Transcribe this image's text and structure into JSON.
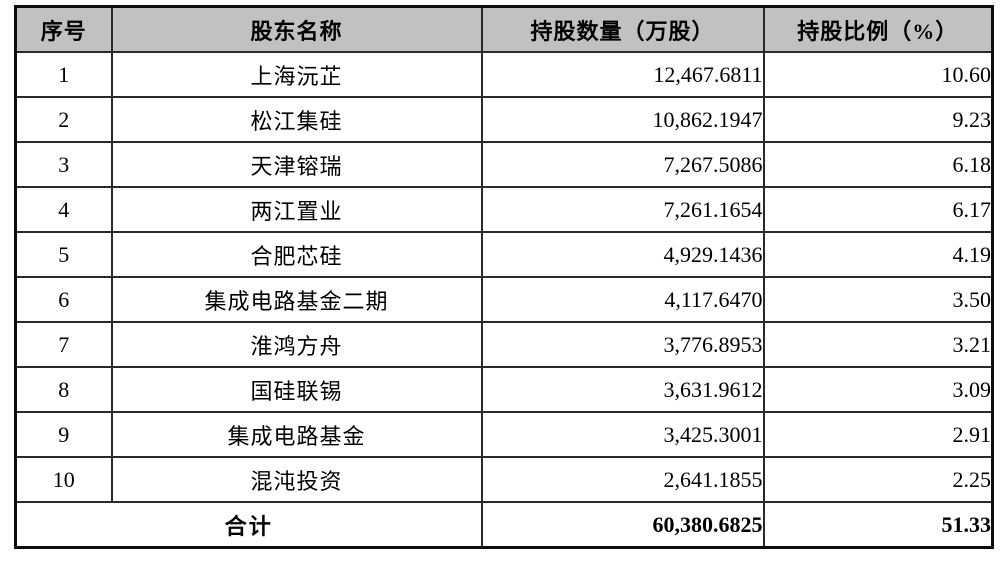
{
  "table": {
    "headers": {
      "no": "序号",
      "name": "股东名称",
      "shares": "持股数量（万股）",
      "pct": "持股比例（%）"
    },
    "rows": [
      {
        "no": "1",
        "name": "上海沅芷",
        "shares": "12,467.6811",
        "pct": "10.60"
      },
      {
        "no": "2",
        "name": "松江集硅",
        "shares": "10,862.1947",
        "pct": "9.23"
      },
      {
        "no": "3",
        "name": "天津镕瑞",
        "shares": "7,267.5086",
        "pct": "6.18"
      },
      {
        "no": "4",
        "name": "两江置业",
        "shares": "7,261.1654",
        "pct": "6.17"
      },
      {
        "no": "5",
        "name": "合肥芯硅",
        "shares": "4,929.1436",
        "pct": "4.19"
      },
      {
        "no": "6",
        "name": "集成电路基金二期",
        "shares": "4,117.6470",
        "pct": "3.50"
      },
      {
        "no": "7",
        "name": "淮鸿方舟",
        "shares": "3,776.8953",
        "pct": "3.21"
      },
      {
        "no": "8",
        "name": "国硅联锡",
        "shares": "3,631.9612",
        "pct": "3.09"
      },
      {
        "no": "9",
        "name": "集成电路基金",
        "shares": "3,425.3001",
        "pct": "2.91"
      },
      {
        "no": "10",
        "name": "混沌投资",
        "shares": "2,641.1855",
        "pct": "2.25"
      }
    ],
    "total": {
      "label": "合计",
      "shares": "60,380.6825",
      "pct": "51.33"
    }
  },
  "colors": {
    "header_bg": "#c1c1c1",
    "border": "#2a2a2a",
    "outer_border": "#0d0d0d",
    "text": "#000000"
  }
}
